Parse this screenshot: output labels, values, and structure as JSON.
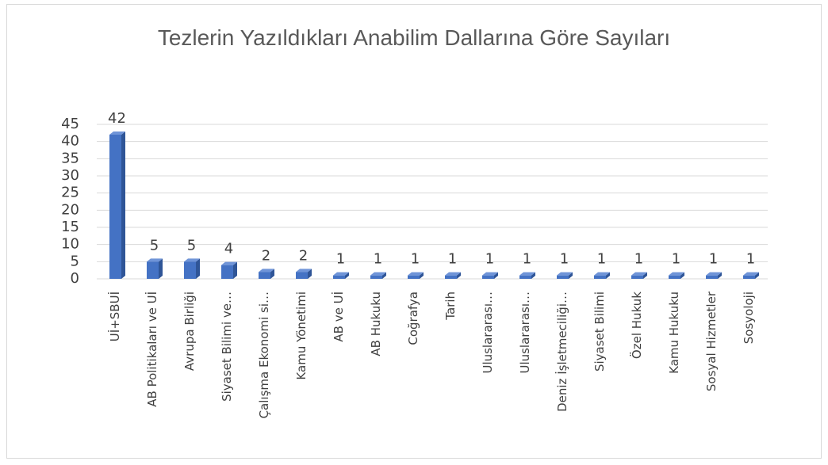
{
  "chart_data": {
    "type": "bar",
    "title": "Tezlerin Yazıldıkları Anabilim Dallarına Göre Sayıları",
    "categories": [
      "Uİ+SBUİ",
      "AB Politikaları ve Uİ",
      "Avrupa Birliği",
      "Siyaset Bilimi ve…",
      "Çalışma Ekonomi si…",
      "Kamu Yönetimi",
      "AB ve Uİ",
      "AB Hukuku",
      "Coğrafya",
      "Tarih",
      "Uluslararası…",
      "Uluslararası…",
      "Deniz İşletmeciliği…",
      "Siyaset Bilimi",
      "Özel Hukuk",
      "Kamu Hukuku",
      "Sosyal Hizmetler",
      "Sosyoloji"
    ],
    "values": [
      42,
      5,
      5,
      4,
      2,
      2,
      1,
      1,
      1,
      1,
      1,
      1,
      1,
      1,
      1,
      1,
      1,
      1
    ],
    "color": "#4472c4",
    "ylim": [
      0,
      45
    ],
    "yticks": [
      0,
      5,
      10,
      15,
      20,
      25,
      30,
      35,
      40,
      45
    ],
    "grid": true
  }
}
